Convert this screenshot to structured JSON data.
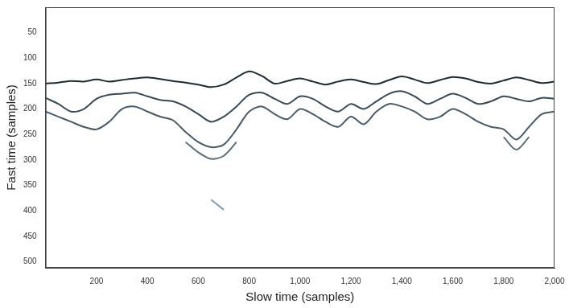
{
  "chart_data": {
    "type": "line",
    "x_label": "Slow time (samples)",
    "y_label": "Fast time (samples)",
    "xlim": [
      0,
      2000
    ],
    "xticks": [
      200,
      400,
      600,
      800,
      1000,
      1200,
      1400,
      1600,
      1800,
      2000
    ],
    "ylim": [
      0,
      512
    ],
    "yticks": [
      50,
      100,
      150,
      200,
      250,
      300,
      350,
      400,
      450,
      500
    ],
    "grid": false,
    "x": [
      0,
      50,
      100,
      150,
      200,
      250,
      300,
      350,
      400,
      450,
      500,
      550,
      600,
      650,
      700,
      750,
      800,
      850,
      900,
      950,
      1000,
      1050,
      1100,
      1150,
      1200,
      1250,
      1300,
      1350,
      1400,
      1450,
      1500,
      1550,
      1600,
      1650,
      1700,
      1750,
      1800,
      1850,
      1900,
      1950,
      2000
    ],
    "series": [
      {
        "color": "#1f2a33",
        "values": [
          150,
          148,
          145,
          146,
          142,
          146,
          143,
          140,
          138,
          141,
          145,
          148,
          152,
          157,
          152,
          138,
          126,
          135,
          150,
          145,
          140,
          146,
          152,
          146,
          142,
          147,
          151,
          143,
          136,
          142,
          149,
          143,
          137,
          140,
          147,
          150,
          144,
          138,
          143,
          149,
          146
        ]
      },
      {
        "color": "#3b4a55",
        "values": [
          178,
          190,
          205,
          200,
          180,
          172,
          170,
          168,
          175,
          182,
          185,
          195,
          210,
          225,
          215,
          195,
          172,
          168,
          180,
          190,
          175,
          180,
          195,
          205,
          190,
          200,
          185,
          170,
          165,
          175,
          190,
          180,
          170,
          178,
          190,
          185,
          175,
          180,
          185,
          178,
          180
        ]
      },
      {
        "color": "#4a5a66",
        "values": [
          205,
          215,
          225,
          235,
          240,
          225,
          200,
          195,
          205,
          215,
          222,
          245,
          265,
          275,
          270,
          240,
          205,
          195,
          210,
          220,
          200,
          210,
          225,
          235,
          215,
          230,
          205,
          190,
          195,
          205,
          220,
          215,
          200,
          210,
          225,
          235,
          240,
          260,
          235,
          210,
          205
        ]
      },
      {
        "color": "#5d6c77",
        "values": [
          null,
          null,
          null,
          null,
          null,
          null,
          null,
          null,
          null,
          null,
          null,
          265,
          285,
          298,
          292,
          265,
          null,
          null,
          null,
          null,
          null,
          null,
          null,
          null,
          null,
          null,
          null,
          null,
          null,
          null,
          null,
          null,
          null,
          null,
          null,
          null,
          255,
          280,
          255,
          null,
          null
        ]
      },
      {
        "color": "#8a9aa5",
        "values": [
          null,
          null,
          null,
          null,
          null,
          null,
          null,
          null,
          null,
          null,
          null,
          null,
          null,
          378,
          398,
          null,
          null,
          null,
          null,
          null,
          null,
          null,
          null,
          null,
          null,
          null,
          null,
          null,
          null,
          null,
          null,
          null,
          null,
          null,
          null,
          null,
          null,
          null,
          null,
          null,
          null
        ]
      }
    ]
  }
}
